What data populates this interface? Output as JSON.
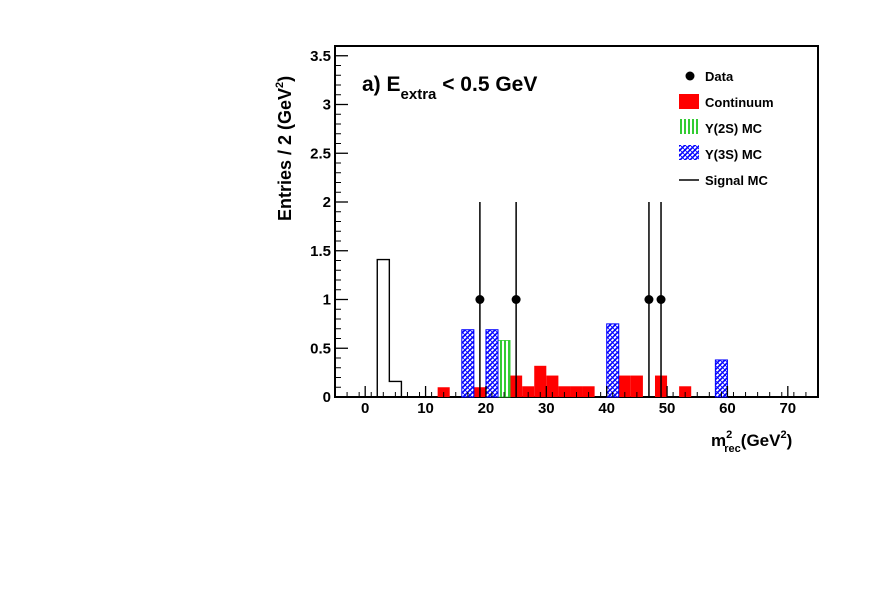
{
  "chart_data": {
    "type": "bar",
    "panel_title": {
      "prefix": "a) E",
      "subscript": "extra",
      "suffix": " < 0.5 GeV"
    },
    "xlabel": {
      "base": "m",
      "sup": "2",
      "sub": "rec",
      "rest": "(GeV",
      "rest_sup": "2",
      "close": ")"
    },
    "ylabel": {
      "text": "Entries / 2 (GeV",
      "sup": "2",
      "close": ")"
    },
    "xlim": [
      -5,
      75
    ],
    "ylim": [
      0,
      3.6
    ],
    "bin_width": 2,
    "x_ticks": [
      0,
      10,
      20,
      30,
      40,
      50,
      60,
      70
    ],
    "y_ticks": [
      0,
      0.5,
      1,
      1.5,
      2,
      2.5,
      3,
      3.5
    ],
    "x_tick_labels": [
      "0",
      "10",
      "20",
      "30",
      "40",
      "50",
      "60",
      "70"
    ],
    "y_tick_labels": [
      "0",
      "0.5",
      "1",
      "1.5",
      "2",
      "2.5",
      "3",
      "3.5"
    ],
    "continuum": [
      {
        "x": 12,
        "y": 0.1
      },
      {
        "x": 16,
        "y": 0.32
      },
      {
        "x": 18,
        "y": 0.1
      },
      {
        "x": 20,
        "y": 0.32
      },
      {
        "x": 22,
        "y": 0.22
      },
      {
        "x": 24,
        "y": 0.22
      },
      {
        "x": 26,
        "y": 0.11
      },
      {
        "x": 28,
        "y": 0.32
      },
      {
        "x": 30,
        "y": 0.22
      },
      {
        "x": 32,
        "y": 0.11
      },
      {
        "x": 34,
        "y": 0.11
      },
      {
        "x": 36,
        "y": 0.11
      },
      {
        "x": 42,
        "y": 0.22
      },
      {
        "x": 44,
        "y": 0.22
      },
      {
        "x": 48,
        "y": 0.22
      },
      {
        "x": 52,
        "y": 0.11
      }
    ],
    "upsilon2s": [
      {
        "x": 22,
        "y": 0.58
      }
    ],
    "upsilon3s": [
      {
        "x": 16,
        "y": 0.69
      },
      {
        "x": 20,
        "y": 0.69
      },
      {
        "x": 40,
        "y": 0.75
      },
      {
        "x": 58,
        "y": 0.38
      }
    ],
    "signal_mc": [
      {
        "x": 2,
        "y": 1.41
      },
      {
        "x": 4,
        "y": 0.16
      }
    ],
    "data_points": [
      {
        "x": 18,
        "y": 1,
        "err": 1
      },
      {
        "x": 24,
        "y": 1,
        "err": 1
      },
      {
        "x": 46,
        "y": 1,
        "err": 1
      },
      {
        "x": 48,
        "y": 1,
        "err": 1
      }
    ],
    "legend": [
      {
        "name": "data",
        "label": "Data",
        "style": "marker"
      },
      {
        "name": "continuum",
        "label": "Continuum",
        "style": "fill",
        "color": "#ff0000"
      },
      {
        "name": "upsilon2s",
        "label": "Υ(2S) MC",
        "style": "hatch",
        "color": "#33cc33"
      },
      {
        "name": "upsilon3s",
        "label": "Υ(3S) MC",
        "style": "hatch",
        "color": "#0000ff"
      },
      {
        "name": "signal",
        "label": "Signal MC",
        "style": "line",
        "color": "#000000"
      }
    ],
    "colors": {
      "continuum": "#ff0000",
      "upsilon2s": "#33cc33",
      "upsilon3s": "#0000ff",
      "signal": "#000000",
      "data": "#000000"
    },
    "legend_position": "top-right"
  }
}
